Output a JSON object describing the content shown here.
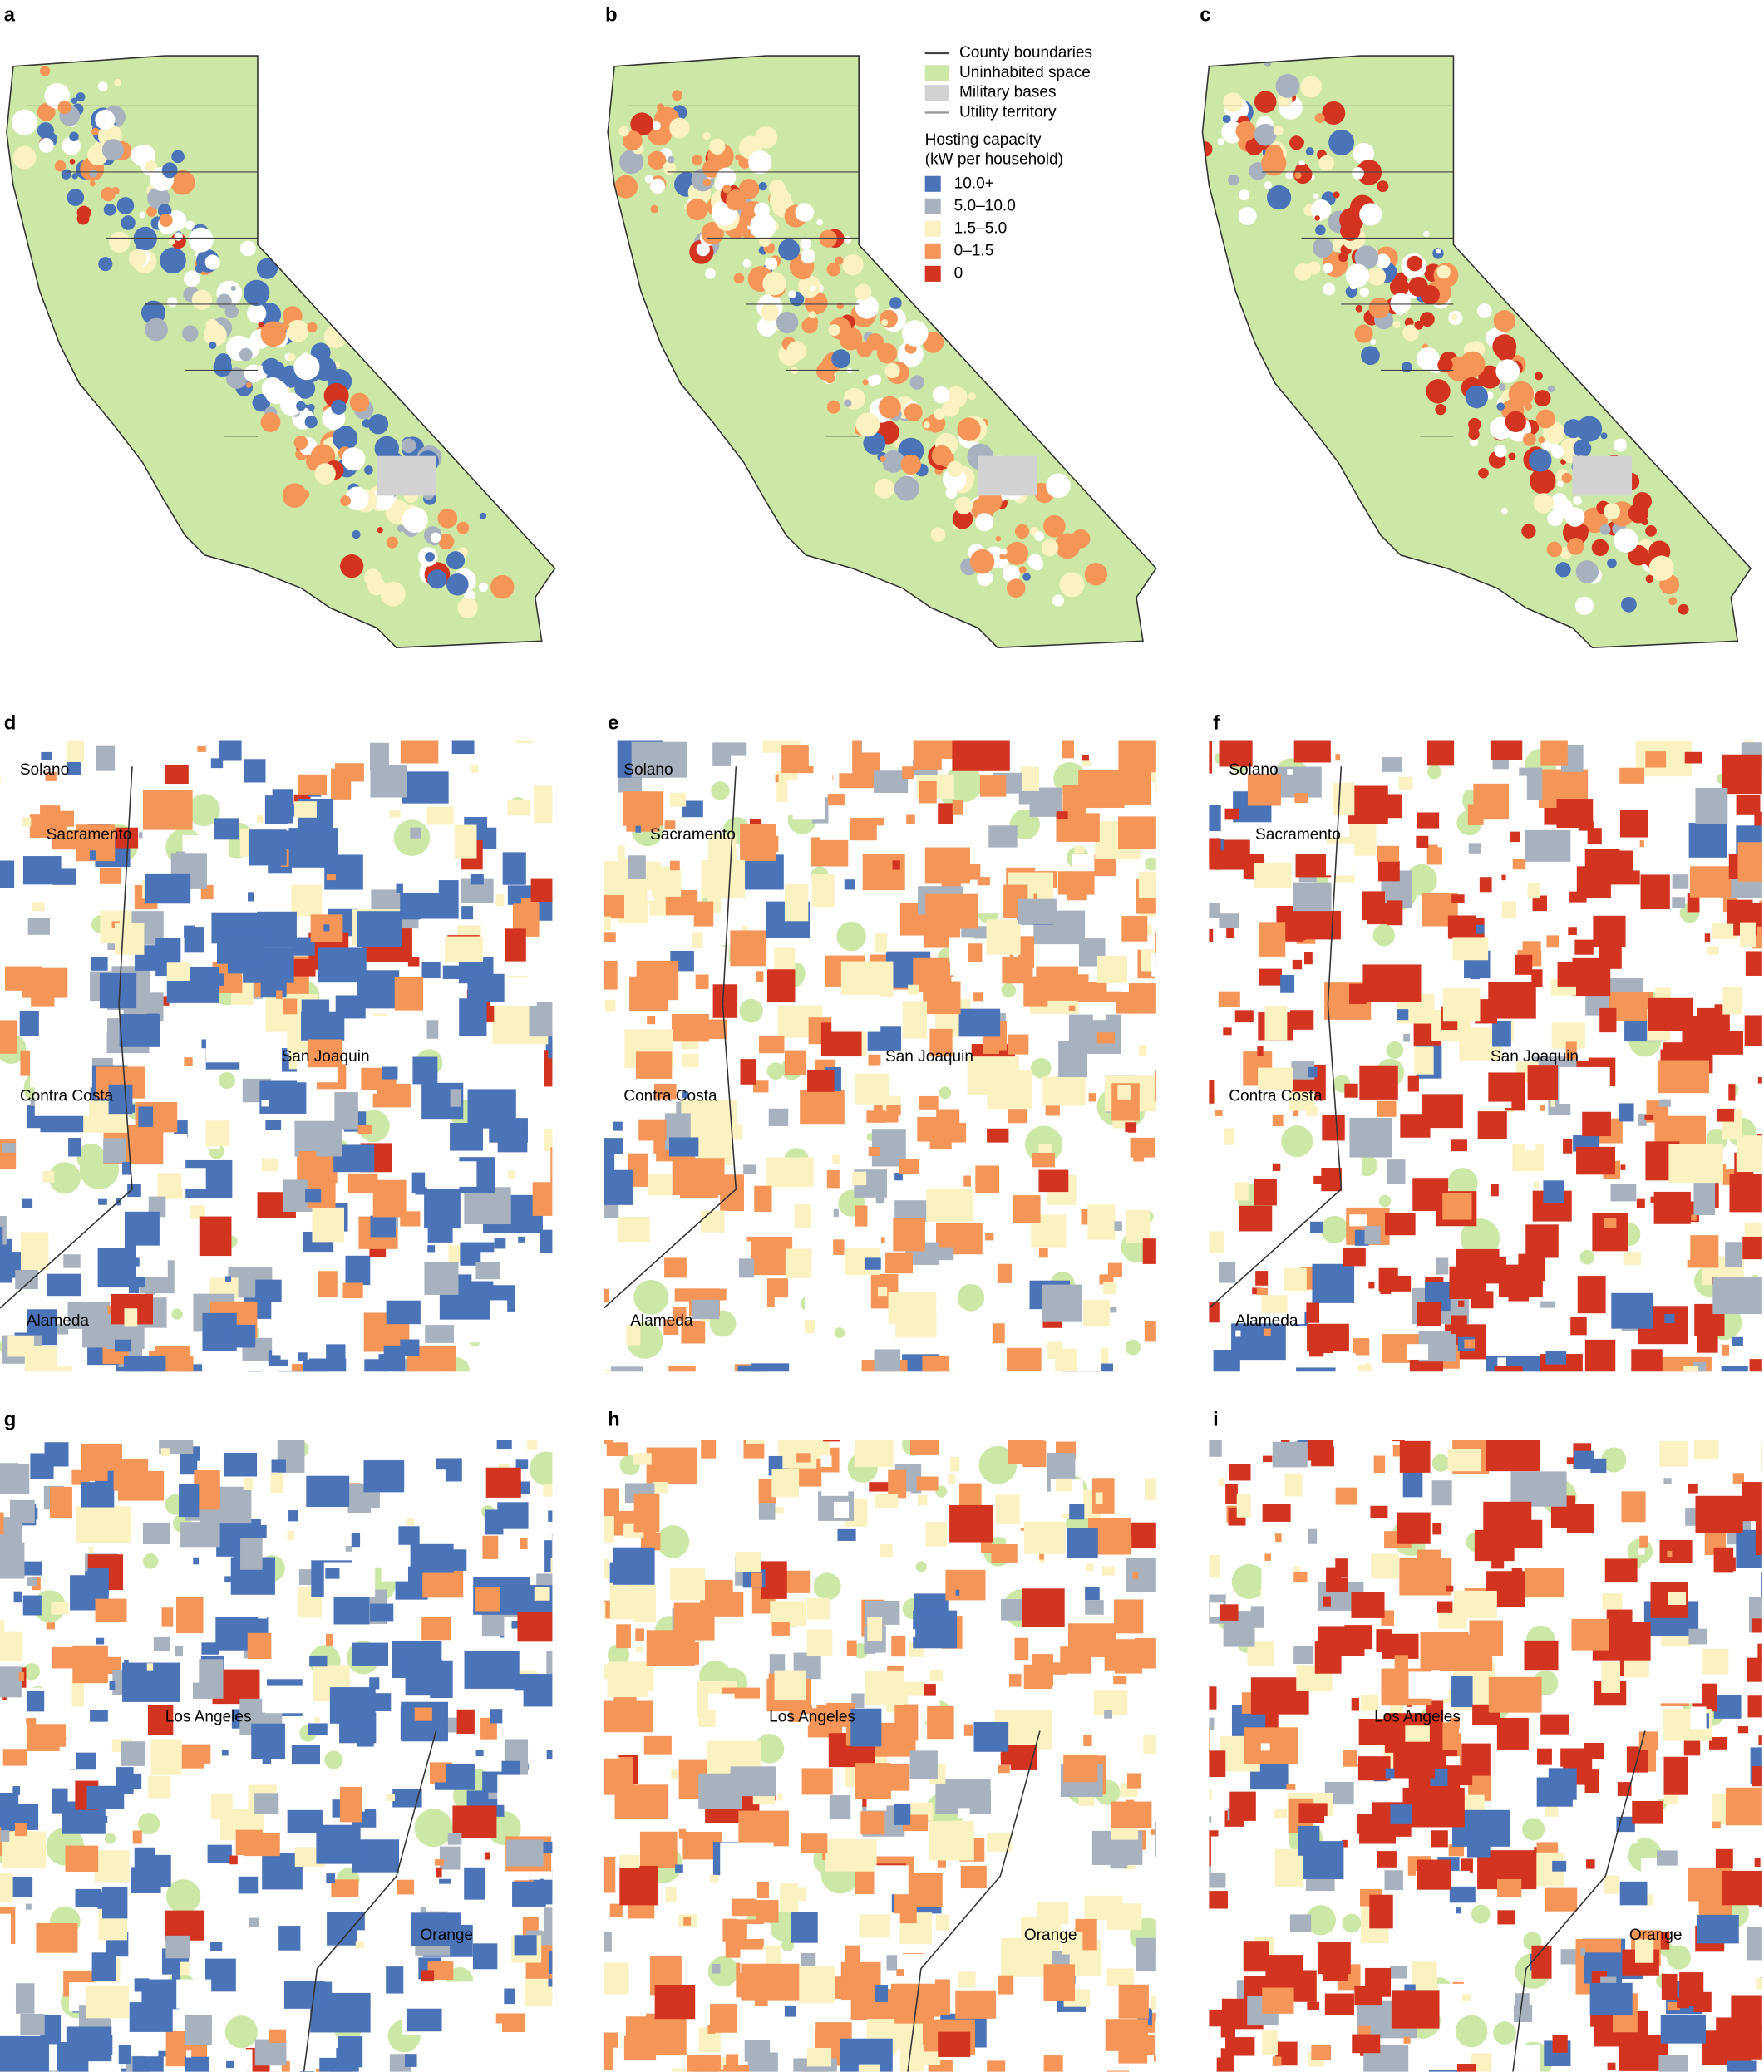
{
  "panels": [
    {
      "letter": "a"
    },
    {
      "letter": "b"
    },
    {
      "letter": "c"
    },
    {
      "letter": "d",
      "places": [
        "Solano",
        "Sacramento",
        "San Joaquin",
        "Contra Costa",
        "Alameda"
      ]
    },
    {
      "letter": "e",
      "places": [
        "Solano",
        "Sacramento",
        "San Joaquin",
        "Contra Costa",
        "Alameda"
      ]
    },
    {
      "letter": "f",
      "places": [
        "Solano",
        "Sacramento",
        "San Joaquin",
        "Contra Costa",
        "Alameda"
      ]
    },
    {
      "letter": "g",
      "places": [
        "Los Angeles",
        "Orange"
      ]
    },
    {
      "letter": "h",
      "places": [
        "Los Angeles",
        "Orange"
      ]
    },
    {
      "letter": "i",
      "places": [
        "Los Angeles",
        "Orange"
      ]
    }
  ],
  "legend": {
    "entries": [
      {
        "label": "County boundaries",
        "kind": "line",
        "color": "#444444"
      },
      {
        "label": "Uninhabited space",
        "kind": "swatch",
        "color": "#cde8a6"
      },
      {
        "label": "Military bases",
        "kind": "swatch",
        "color": "#d2d2d2"
      },
      {
        "label": "Utility territory",
        "kind": "line",
        "color": "#999999"
      }
    ],
    "heading": [
      "Hosting capacity",
      "(kW per household)"
    ],
    "classes": [
      {
        "label": "10.0+",
        "color": "#4a73b8"
      },
      {
        "label": "5.0–10.0",
        "color": "#a8b2bf"
      },
      {
        "label": "1.5–5.0",
        "color": "#fbf2c2"
      },
      {
        "label": "0–1.5",
        "color": "#f59658"
      },
      {
        "label": "0",
        "color": "#d33420"
      }
    ]
  }
}
